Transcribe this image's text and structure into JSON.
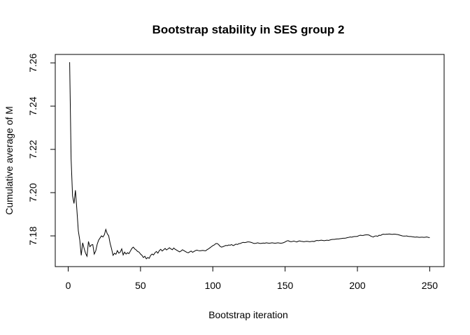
{
  "chart_data": {
    "type": "line",
    "title": "Bootstrap stability in SES group 2",
    "xlabel": "Bootstrap iteration",
    "ylabel": "Cumulative average of M",
    "xlim": [
      -8.96,
      259.96
    ],
    "ylim": [
      7.1658,
      7.2639
    ],
    "xticks": [
      0,
      50,
      100,
      150,
      200,
      250
    ],
    "xtick_labels": [
      "0",
      "50",
      "100",
      "150",
      "200",
      "250"
    ],
    "yticks": [
      7.18,
      7.2,
      7.22,
      7.24,
      7.26
    ],
    "ytick_labels": [
      "7.18",
      "7.20",
      "7.22",
      "7.24",
      "7.26"
    ],
    "grid": false,
    "line_color": "#000000",
    "x_start": 1,
    "values": [
      7.2603,
      7.2157,
      7.1985,
      7.195,
      7.2011,
      7.192,
      7.1823,
      7.178,
      7.171,
      7.1768,
      7.1742,
      7.172,
      7.1706,
      7.1774,
      7.175,
      7.1758,
      7.176,
      7.1716,
      7.173,
      7.176,
      7.178,
      7.179,
      7.18,
      7.1795,
      7.1805,
      7.183,
      7.181,
      7.18,
      7.1765,
      7.174,
      7.171,
      7.172,
      7.1715,
      7.1732,
      7.172,
      7.1725,
      7.174,
      7.1712,
      7.1725,
      7.1716,
      7.1722,
      7.1718,
      7.173,
      7.1742,
      7.1748,
      7.174,
      7.1735,
      7.1728,
      7.1725,
      7.1716,
      7.171,
      7.17,
      7.1706,
      7.1694,
      7.17,
      7.1696,
      7.171,
      7.1716,
      7.1712,
      7.1722,
      7.1728,
      7.172,
      7.1732,
      7.1738,
      7.173,
      7.1736,
      7.1742,
      7.1735,
      7.174,
      7.1745,
      7.174,
      7.1736,
      7.1744,
      7.1738,
      7.1734,
      7.173,
      7.1726,
      7.173,
      7.1736,
      7.1732,
      7.1728,
      7.1724,
      7.1722,
      7.1726,
      7.173,
      7.1724,
      7.1728,
      7.1732,
      7.1734,
      7.1732,
      7.1731,
      7.1732,
      7.1733,
      7.1732,
      7.1731,
      7.1736,
      7.174,
      7.1745,
      7.175,
      7.1755,
      7.1758,
      7.1764,
      7.1765,
      7.176,
      7.1752,
      7.1748,
      7.175,
      7.1753,
      7.1756,
      7.1755,
      7.1758,
      7.1757,
      7.176,
      7.1755,
      7.1758,
      7.1762,
      7.176,
      7.1764,
      7.1765,
      7.1768,
      7.177,
      7.1769,
      7.177,
      7.1772,
      7.1772,
      7.1771,
      7.1769,
      7.1766,
      7.1765,
      7.1766,
      7.1768,
      7.1766,
      7.1765,
      7.1766,
      7.1767,
      7.1766,
      7.1768,
      7.1767,
      7.1766,
      7.1767,
      7.1768,
      7.1767,
      7.1766,
      7.1767,
      7.1768,
      7.1767,
      7.1766,
      7.1767,
      7.1769,
      7.1772,
      7.1776,
      7.1778,
      7.1775,
      7.1773,
      7.1774,
      7.1776,
      7.1774,
      7.1772,
      7.1775,
      7.1777,
      7.1775,
      7.1774,
      7.1773,
      7.1774,
      7.1775,
      7.1774,
      7.1773,
      7.1774,
      7.1775,
      7.1774,
      7.1777,
      7.1779,
      7.1778,
      7.1779,
      7.178,
      7.1779,
      7.1778,
      7.1779,
      7.178,
      7.1779,
      7.1781,
      7.1783,
      7.1784,
      7.1784,
      7.1785,
      7.1786,
      7.1786,
      7.1787,
      7.1788,
      7.1789,
      7.1789,
      7.179,
      7.1792,
      7.1793,
      7.1795,
      7.1794,
      7.1796,
      7.1797,
      7.1797,
      7.1798,
      7.1801,
      7.1803,
      7.1802,
      7.1802,
      7.1804,
      7.1805,
      7.1805,
      7.1804,
      7.18,
      7.1797,
      7.1795,
      7.1799,
      7.18,
      7.1798,
      7.1803,
      7.1802,
      7.1806,
      7.1808,
      7.1807,
      7.1808,
      7.1808,
      7.1809,
      7.1808,
      7.1807,
      7.1808,
      7.1808,
      7.1807,
      7.1806,
      7.1804,
      7.1802,
      7.18,
      7.1799,
      7.1799,
      7.18,
      7.1798,
      7.1797,
      7.1797,
      7.1796,
      7.1795,
      7.1794,
      7.1795,
      7.1794,
      7.1793,
      7.1794,
      7.1794,
      7.1793,
      7.1794,
      7.1795,
      7.1793,
      7.1792
    ]
  }
}
